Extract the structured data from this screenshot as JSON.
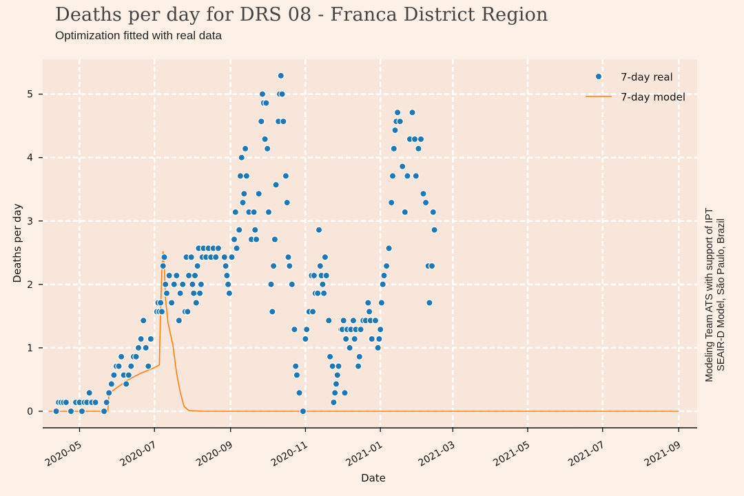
{
  "title": "Deaths per day for DRS 08 - Franca District Region",
  "subtitle": "Optimization fitted with real data",
  "credit": {
    "line1": "Modeling Team ATS with support of IPT",
    "line2": "SEAIR-D Model, São Paulo, Brazil"
  },
  "colors": {
    "background": "#fdf0e6",
    "plot_area": "#f9e6da",
    "grid": "#ffffff",
    "real": "#1f77b4",
    "model": "#ff7f0e"
  },
  "chart_data": {
    "type": "scatter",
    "title": "Deaths per day for DRS 08 - Franca District Region",
    "subtitle": "Optimization fitted with real data",
    "xlabel": "Date",
    "ylabel": "Deaths per day",
    "x_tick_labels": [
      "2020-05",
      "2020-07",
      "2020-09",
      "2020-11",
      "2021-01",
      "2021-03",
      "2021-05",
      "2021-07",
      "2021-09"
    ],
    "x_ticks": [
      "2020-05-01",
      "2020-07-01",
      "2020-09-01",
      "2020-11-01",
      "2021-01-01",
      "2021-03-01",
      "2021-05-01",
      "2021-07-01",
      "2021-09-01"
    ],
    "y_ticks": [
      0,
      1,
      2,
      3,
      4,
      5
    ],
    "xlim": [
      "2020-04-01",
      "2021-09-16"
    ],
    "ylim": [
      -0.25,
      5.55
    ],
    "grid": true,
    "legend_position": "top-right",
    "series": [
      {
        "name": "7-day real",
        "kind": "scatter",
        "points": [
          [
            "2020-04-12",
            0
          ],
          [
            "2020-04-14",
            0.14
          ],
          [
            "2020-04-16",
            0.14
          ],
          [
            "2020-04-18",
            0.14
          ],
          [
            "2020-04-20",
            0.14
          ],
          [
            "2020-04-24",
            0
          ],
          [
            "2020-04-28",
            0.14
          ],
          [
            "2020-05-01",
            0.14
          ],
          [
            "2020-05-03",
            0
          ],
          [
            "2020-05-05",
            0.14
          ],
          [
            "2020-05-07",
            0.14
          ],
          [
            "2020-05-09",
            0.29
          ],
          [
            "2020-05-11",
            0.14
          ],
          [
            "2020-05-14",
            0.14
          ],
          [
            "2020-05-21",
            0
          ],
          [
            "2020-05-23",
            0.14
          ],
          [
            "2020-05-25",
            0.29
          ],
          [
            "2020-05-27",
            0.43
          ],
          [
            "2020-05-29",
            0.57
          ],
          [
            "2020-05-31",
            0.71
          ],
          [
            "2020-06-02",
            0.71
          ],
          [
            "2020-06-04",
            0.86
          ],
          [
            "2020-06-06",
            0.57
          ],
          [
            "2020-06-08",
            0.43
          ],
          [
            "2020-06-10",
            0.57
          ],
          [
            "2020-06-12",
            0.71
          ],
          [
            "2020-06-14",
            0.86
          ],
          [
            "2020-06-16",
            0.86
          ],
          [
            "2020-06-18",
            1.0
          ],
          [
            "2020-06-20",
            1.14
          ],
          [
            "2020-06-22",
            1.43
          ],
          [
            "2020-06-24",
            1.0
          ],
          [
            "2020-06-26",
            0.71
          ],
          [
            "2020-06-28",
            1.14
          ],
          [
            "2020-07-03",
            1.57
          ],
          [
            "2020-07-04",
            1.71
          ],
          [
            "2020-07-05",
            1.57
          ],
          [
            "2020-07-06",
            1.71
          ],
          [
            "2020-07-07",
            1.57
          ],
          [
            "2020-07-08",
            2.29
          ],
          [
            "2020-07-09",
            2.43
          ],
          [
            "2020-07-10",
            2.0
          ],
          [
            "2020-07-11",
            1.86
          ],
          [
            "2020-07-13",
            2.14
          ],
          [
            "2020-07-15",
            1.71
          ],
          [
            "2020-07-17",
            2.0
          ],
          [
            "2020-07-19",
            2.14
          ],
          [
            "2020-07-21",
            1.43
          ],
          [
            "2020-07-22",
            1.86
          ],
          [
            "2020-07-24",
            2.0
          ],
          [
            "2020-07-26",
            1.57
          ],
          [
            "2020-07-27",
            2.43
          ],
          [
            "2020-07-28",
            1.57
          ],
          [
            "2020-07-29",
            2.14
          ],
          [
            "2020-07-31",
            2.43
          ],
          [
            "2020-08-01",
            2.0
          ],
          [
            "2020-08-02",
            1.86
          ],
          [
            "2020-08-03",
            2.14
          ],
          [
            "2020-08-04",
            1.71
          ],
          [
            "2020-08-05",
            2.29
          ],
          [
            "2020-08-06",
            2.57
          ],
          [
            "2020-08-07",
            1.86
          ],
          [
            "2020-08-08",
            2.0
          ],
          [
            "2020-08-09",
            2.43
          ],
          [
            "2020-08-10",
            2.57
          ],
          [
            "2020-08-12",
            2.43
          ],
          [
            "2020-08-14",
            2.57
          ],
          [
            "2020-08-16",
            2.43
          ],
          [
            "2020-08-18",
            2.57
          ],
          [
            "2020-08-20",
            2.43
          ],
          [
            "2020-08-22",
            2.57
          ],
          [
            "2020-08-27",
            2.43
          ],
          [
            "2020-08-28",
            2.29
          ],
          [
            "2020-08-29",
            2.14
          ],
          [
            "2020-08-30",
            2.0
          ],
          [
            "2020-08-31",
            1.86
          ],
          [
            "2020-09-02",
            2.43
          ],
          [
            "2020-09-04",
            2.71
          ],
          [
            "2020-09-05",
            3.14
          ],
          [
            "2020-09-06",
            2.57
          ],
          [
            "2020-09-08",
            2.86
          ],
          [
            "2020-09-09",
            3.71
          ],
          [
            "2020-09-10",
            4.0
          ],
          [
            "2020-09-11",
            3.29
          ],
          [
            "2020-09-12",
            3.43
          ],
          [
            "2020-09-13",
            4.14
          ],
          [
            "2020-09-14",
            3.71
          ],
          [
            "2020-09-16",
            3.14
          ],
          [
            "2020-09-18",
            2.71
          ],
          [
            "2020-09-20",
            3.14
          ],
          [
            "2020-09-21",
            2.86
          ],
          [
            "2020-09-22",
            2.71
          ],
          [
            "2020-09-24",
            3.43
          ],
          [
            "2020-09-26",
            4.57
          ],
          [
            "2020-09-27",
            5.0
          ],
          [
            "2020-09-28",
            4.86
          ],
          [
            "2020-09-29",
            4.29
          ],
          [
            "2020-09-30",
            4.86
          ],
          [
            "2020-10-01",
            4.14
          ],
          [
            "2020-10-02",
            3.14
          ],
          [
            "2020-10-04",
            2.0
          ],
          [
            "2020-10-05",
            1.57
          ],
          [
            "2020-10-06",
            2.29
          ],
          [
            "2020-10-07",
            2.71
          ],
          [
            "2020-10-08",
            3.57
          ],
          [
            "2020-10-10",
            4.57
          ],
          [
            "2020-10-11",
            5.0
          ],
          [
            "2020-10-12",
            5.29
          ],
          [
            "2020-10-13",
            5.0
          ],
          [
            "2020-10-14",
            4.57
          ],
          [
            "2020-10-16",
            3.71
          ],
          [
            "2020-10-17",
            3.29
          ],
          [
            "2020-10-18",
            2.43
          ],
          [
            "2020-10-19",
            2.29
          ],
          [
            "2020-10-21",
            2.0
          ],
          [
            "2020-10-23",
            1.29
          ],
          [
            "2020-10-24",
            0.71
          ],
          [
            "2020-10-25",
            0.57
          ],
          [
            "2020-10-27",
            0.29
          ],
          [
            "2020-10-30",
            0
          ],
          [
            "2020-11-01",
            1.14
          ],
          [
            "2020-11-02",
            1.29
          ],
          [
            "2020-11-04",
            1.57
          ],
          [
            "2020-11-06",
            2.14
          ],
          [
            "2020-11-07",
            1.57
          ],
          [
            "2020-11-08",
            2.14
          ],
          [
            "2020-11-09",
            1.86
          ],
          [
            "2020-11-11",
            1.86
          ],
          [
            "2020-11-12",
            2.86
          ],
          [
            "2020-11-13",
            2.29
          ],
          [
            "2020-11-14",
            2.14
          ],
          [
            "2020-11-15",
            2.0
          ],
          [
            "2020-11-16",
            1.86
          ],
          [
            "2020-11-17",
            2.43
          ],
          [
            "2020-11-18",
            2.14
          ],
          [
            "2020-11-20",
            1.43
          ],
          [
            "2020-11-21",
            0.86
          ],
          [
            "2020-11-23",
            0.71
          ],
          [
            "2020-11-24",
            0.14
          ],
          [
            "2020-11-25",
            0.29
          ],
          [
            "2020-11-26",
            0.43
          ],
          [
            "2020-11-27",
            0.57
          ],
          [
            "2020-11-28",
            0.71
          ],
          [
            "2020-11-30",
            1.29
          ],
          [
            "2020-12-01",
            1.29
          ],
          [
            "2020-12-02",
            1.43
          ],
          [
            "2020-12-03",
            0.29
          ],
          [
            "2020-12-04",
            1.14
          ],
          [
            "2020-12-05",
            1.29
          ],
          [
            "2020-12-07",
            1.0
          ],
          [
            "2020-12-08",
            1.29
          ],
          [
            "2020-12-10",
            1.43
          ],
          [
            "2020-12-11",
            1.14
          ],
          [
            "2020-12-12",
            1.29
          ],
          [
            "2020-12-14",
            0.71
          ],
          [
            "2020-12-15",
            0.86
          ],
          [
            "2020-12-16",
            1.29
          ],
          [
            "2020-12-18",
            1.43
          ],
          [
            "2020-12-20",
            1.43
          ],
          [
            "2020-12-22",
            1.71
          ],
          [
            "2020-12-23",
            1.57
          ],
          [
            "2020-12-24",
            1.43
          ],
          [
            "2020-12-25",
            1.14
          ],
          [
            "2020-12-28",
            1.43
          ],
          [
            "2020-12-30",
            1.0
          ],
          [
            "2020-12-31",
            1.14
          ],
          [
            "2021-01-01",
            1.29
          ],
          [
            "2021-01-02",
            1.71
          ],
          [
            "2021-01-03",
            2.0
          ],
          [
            "2021-01-04",
            2.14
          ],
          [
            "2021-01-06",
            2.29
          ],
          [
            "2021-01-08",
            2.57
          ],
          [
            "2021-01-10",
            3.29
          ],
          [
            "2021-01-11",
            3.71
          ],
          [
            "2021-01-12",
            4.14
          ],
          [
            "2021-01-13",
            4.43
          ],
          [
            "2021-01-14",
            4.57
          ],
          [
            "2021-01-15",
            4.71
          ],
          [
            "2021-01-17",
            4.57
          ],
          [
            "2021-01-19",
            3.86
          ],
          [
            "2021-01-21",
            3.14
          ],
          [
            "2021-01-23",
            3.71
          ],
          [
            "2021-01-25",
            4.29
          ],
          [
            "2021-01-27",
            4.71
          ],
          [
            "2021-01-29",
            4.29
          ],
          [
            "2021-01-30",
            3.71
          ],
          [
            "2021-02-01",
            4.14
          ],
          [
            "2021-02-03",
            4.29
          ],
          [
            "2021-02-05",
            3.43
          ],
          [
            "2021-02-07",
            3.29
          ],
          [
            "2021-02-09",
            2.29
          ],
          [
            "2021-02-10",
            1.71
          ],
          [
            "2021-02-12",
            2.29
          ],
          [
            "2021-02-13",
            3.14
          ],
          [
            "2021-02-14",
            2.86
          ]
        ]
      },
      {
        "name": "7-day model",
        "kind": "line",
        "points": [
          [
            "2020-04-06",
            0
          ],
          [
            "2020-05-24",
            0
          ],
          [
            "2020-05-25",
            0.28
          ],
          [
            "2020-06-01",
            0.38
          ],
          [
            "2020-06-10",
            0.5
          ],
          [
            "2020-06-20",
            0.6
          ],
          [
            "2020-06-30",
            0.68
          ],
          [
            "2020-07-05",
            0.73
          ],
          [
            "2020-07-06",
            1.6
          ],
          [
            "2020-07-07",
            2.2
          ],
          [
            "2020-07-08",
            2.52
          ],
          [
            "2020-07-09",
            2.28
          ],
          [
            "2020-07-10",
            1.78
          ],
          [
            "2020-07-12",
            1.4
          ],
          [
            "2020-07-16",
            1.05
          ],
          [
            "2020-07-19",
            0.6
          ],
          [
            "2020-07-22",
            0.3
          ],
          [
            "2020-07-25",
            0.08
          ],
          [
            "2020-07-29",
            0.01
          ],
          [
            "2020-08-10",
            0
          ],
          [
            "2021-09-01",
            0
          ]
        ]
      }
    ]
  }
}
